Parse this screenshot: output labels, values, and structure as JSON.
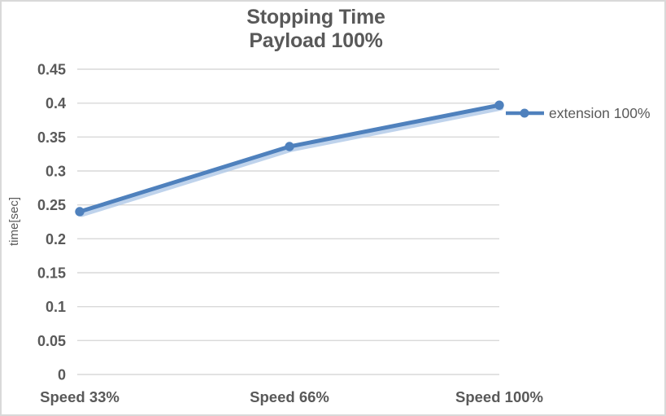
{
  "chart_data": {
    "type": "line",
    "title": "Stopping Time",
    "subtitle": "Payload 100%",
    "categories": [
      "Speed 33%",
      "Speed 66%",
      "Speed 100%"
    ],
    "series": [
      {
        "name": "extension 100%",
        "values": [
          0.24,
          0.336,
          0.397
        ]
      }
    ],
    "xlabel": "",
    "ylabel": "time[sec]",
    "ylim": [
      0,
      0.45
    ],
    "ytick_step": 0.05,
    "ytick_labels": [
      "0",
      "0.05",
      "0.1",
      "0.15",
      "0.2",
      "0.25",
      "0.3",
      "0.35",
      "0.4",
      "0.45"
    ],
    "grid": true,
    "legend_position": "right"
  },
  "colors": {
    "series_line": "#4F81BD",
    "series_shadow": "#AFC8E7",
    "gridline": "#D9D9D9",
    "text": "#595959",
    "frame_border": "#D9D9D9",
    "background": "#FFFFFF"
  }
}
